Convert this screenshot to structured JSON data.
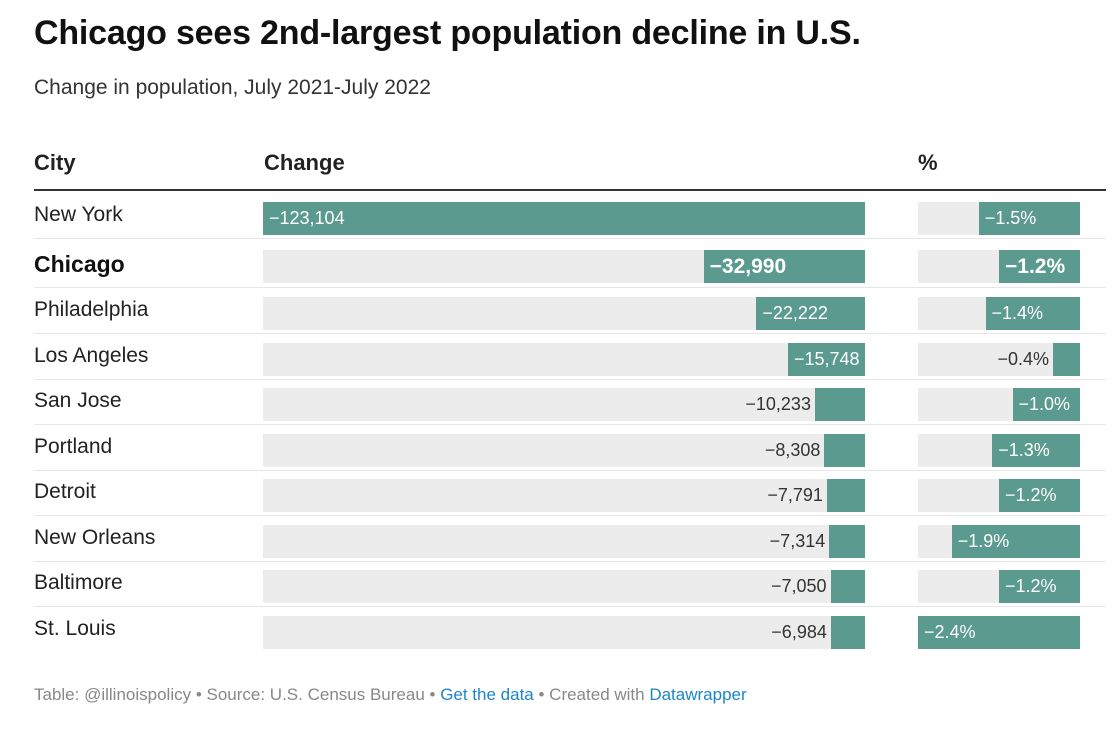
{
  "header": {
    "title": "Chicago sees 2nd-largest population decline in U.S.",
    "subtitle": "Change in population, July 2021-July 2022"
  },
  "columns": {
    "city": "City",
    "change": "Change",
    "pct": "%"
  },
  "chart_data": {
    "type": "table",
    "title": "Chicago sees 2nd-largest population decline in U.S.",
    "subtitle": "Change in population, July 2021-July 2022",
    "columns": [
      "City",
      "Change",
      "%"
    ],
    "max_change": 123104,
    "max_pct": 2.4,
    "rows": [
      {
        "city": "New York",
        "change": -123104,
        "change_label": "−123,104",
        "pct": -1.5,
        "pct_label": "−1.5%",
        "highlight": false
      },
      {
        "city": "Chicago",
        "change": -32990,
        "change_label": "−32,990",
        "pct": -1.2,
        "pct_label": "−1.2%",
        "highlight": true
      },
      {
        "city": "Philadelphia",
        "change": -22222,
        "change_label": "−22,222",
        "pct": -1.4,
        "pct_label": "−1.4%",
        "highlight": false
      },
      {
        "city": "Los Angeles",
        "change": -15748,
        "change_label": "−15,748",
        "pct": -0.4,
        "pct_label": "−0.4%",
        "highlight": false
      },
      {
        "city": "San Jose",
        "change": -10233,
        "change_label": "−10,233",
        "pct": -1.0,
        "pct_label": "−1.0%",
        "highlight": false
      },
      {
        "city": "Portland",
        "change": -8308,
        "change_label": "−8,308",
        "pct": -1.3,
        "pct_label": "−1.3%",
        "highlight": false
      },
      {
        "city": "Detroit",
        "change": -7791,
        "change_label": "−7,791",
        "pct": -1.2,
        "pct_label": "−1.2%",
        "highlight": false
      },
      {
        "city": "New Orleans",
        "change": -7314,
        "change_label": "−7,314",
        "pct": -1.9,
        "pct_label": "−1.9%",
        "highlight": false
      },
      {
        "city": "Baltimore",
        "change": -7050,
        "change_label": "−7,050",
        "pct": -1.2,
        "pct_label": "−1.2%",
        "highlight": false
      },
      {
        "city": "St. Louis",
        "change": -6984,
        "change_label": "−6,984",
        "pct": -2.4,
        "pct_label": "−2.4%",
        "highlight": false
      }
    ]
  },
  "footer": {
    "prefix": "Table: @illinoispolicy • Source: U.S. Census Bureau • ",
    "data_link": "Get the data",
    "middle": " • Created with ",
    "credit_link": "Datawrapper"
  },
  "colors": {
    "bar": "#5a9a8f",
    "track": "#ececec",
    "link": "#1b86c9"
  }
}
